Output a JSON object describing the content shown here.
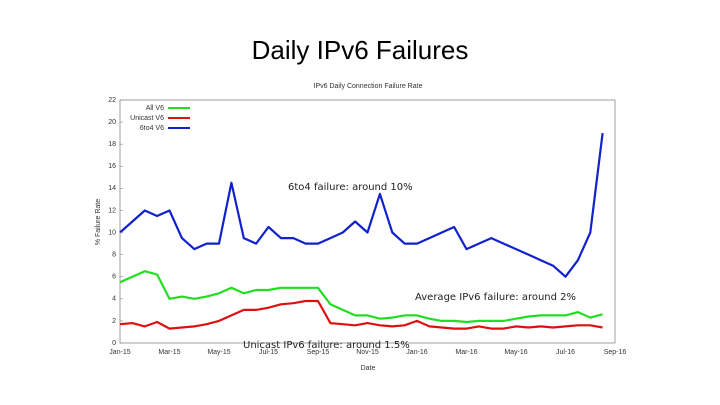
{
  "slide_title": "Daily IPv6 Failures",
  "chart_data": {
    "type": "line",
    "title": "IPv6 Daily Connection Failure Rate",
    "x_label": "Date",
    "y_label": "% Failure Rate",
    "categories": [
      "Jan-15",
      null,
      null,
      null,
      "Mar-15",
      null,
      null,
      null,
      "May-15",
      null,
      null,
      null,
      "Jul-15",
      null,
      null,
      null,
      "Sep-15",
      null,
      null,
      null,
      "Nov-15",
      null,
      null,
      null,
      "Jan-16",
      null,
      null,
      null,
      "Mar-16",
      null,
      null,
      null,
      "May-16",
      null,
      null,
      null,
      "Jul-16",
      null,
      null,
      null,
      "Sep-16"
    ],
    "series": [
      {
        "name": "All V6",
        "color": "#22dd22",
        "values": [
          5.5,
          6,
          6.5,
          6.2,
          4,
          4.2,
          4,
          4.2,
          4.5,
          5,
          4.5,
          4.8,
          4.8,
          5,
          5,
          5,
          5,
          3.5,
          3,
          2.5,
          2.5,
          2.2,
          2.3,
          2.5,
          2.5,
          2.2,
          2,
          2,
          1.9,
          2,
          2,
          2,
          2.2,
          2.4,
          2.5,
          2.5,
          2.5,
          2.8,
          2.3,
          2.6,
          null
        ]
      },
      {
        "name": "Unicast V6",
        "color": "#dd1111",
        "values": [
          1.7,
          1.8,
          1.5,
          1.9,
          1.3,
          1.4,
          1.5,
          1.7,
          2,
          2.5,
          3,
          3,
          3.2,
          3.5,
          3.6,
          3.8,
          3.8,
          1.8,
          1.7,
          1.6,
          1.8,
          1.6,
          1.5,
          1.6,
          2,
          1.5,
          1.4,
          1.3,
          1.3,
          1.5,
          1.3,
          1.3,
          1.5,
          1.4,
          1.5,
          1.4,
          1.5,
          1.6,
          1.6,
          1.4,
          null
        ]
      },
      {
        "name": "6to4 V6",
        "color": "#1122cc",
        "values": [
          10,
          11,
          12,
          11.5,
          12,
          9.5,
          8.5,
          9,
          9,
          14.5,
          9.5,
          9,
          10.5,
          9.5,
          9.5,
          9,
          9,
          9.5,
          10,
          11,
          10,
          13.5,
          10,
          9,
          9,
          9.5,
          10,
          10.5,
          8.5,
          9,
          9.5,
          9,
          8.5,
          8,
          7.5,
          7,
          6,
          7.5,
          10,
          19,
          null
        ]
      }
    ],
    "ylim": [
      0,
      22
    ],
    "yticks": [
      0,
      2,
      4,
      6,
      8,
      10,
      12,
      14,
      16,
      18,
      20,
      22
    ],
    "grid": false,
    "legend": "upper left",
    "annotations": [
      "6to4 failure: around 10%",
      "Average IPv6 failure: around 2%",
      "Unicast IPv6 failure: around 1.5%"
    ]
  }
}
